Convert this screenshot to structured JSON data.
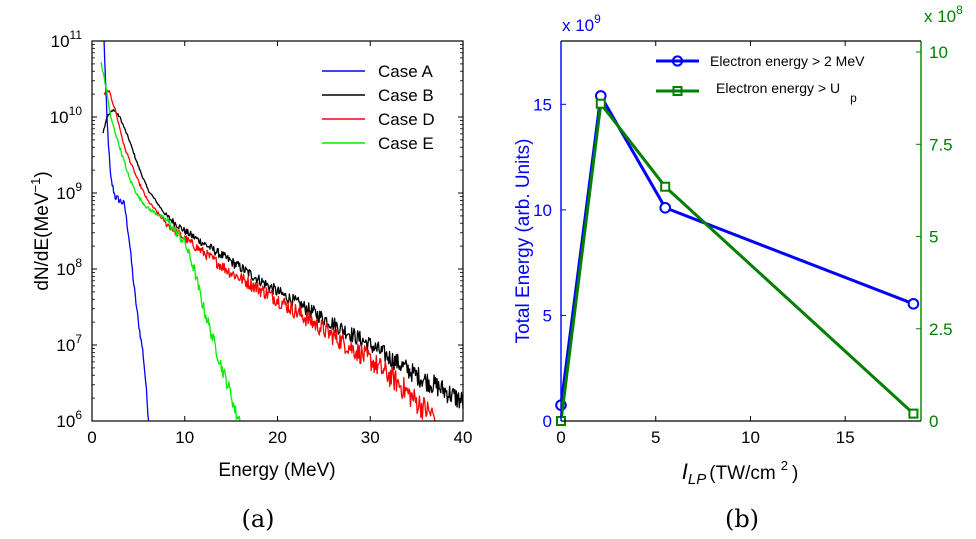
{
  "chart_data": [
    {
      "type": "line",
      "panel_label": "(a)",
      "xlabel": "Energy (MeV)",
      "ylabel_base": "dN/dE(MeV",
      "ylabel_exp": "−1",
      "ylabel_close": ")",
      "xlim": [
        0,
        40
      ],
      "ylim": [
        1000000.0,
        100000000000.0
      ],
      "yscale": "log",
      "xticks": [
        "0",
        "10",
        "20",
        "30",
        "40"
      ],
      "yticks": [
        {
          "base": "10",
          "exp": "6"
        },
        {
          "base": "10",
          "exp": "7"
        },
        {
          "base": "10",
          "exp": "8"
        },
        {
          "base": "10",
          "exp": "9"
        },
        {
          "base": "10",
          "exp": "10"
        },
        {
          "base": "10",
          "exp": "11"
        }
      ],
      "legend_position": "top-right",
      "series": [
        {
          "name": "Case A",
          "color": "#0000ff",
          "noise": 0.12,
          "log10": [
            [
              1.3,
              11.0
            ],
            [
              1.6,
              10.0
            ],
            [
              2.0,
              9.2
            ],
            [
              2.5,
              8.95
            ],
            [
              3.0,
              8.9
            ],
            [
              3.5,
              8.85
            ],
            [
              4.0,
              8.4
            ],
            [
              4.5,
              7.8
            ],
            [
              5.0,
              7.3
            ],
            [
              5.5,
              6.9
            ],
            [
              5.8,
              6.5
            ],
            [
              6.1,
              6.0
            ]
          ]
        },
        {
          "name": "Case B",
          "color": "#000000",
          "noise": 0.04,
          "log10": [
            [
              1.2,
              9.8
            ],
            [
              1.6,
              10.0
            ],
            [
              2.3,
              10.1
            ],
            [
              3.0,
              10.0
            ],
            [
              4.0,
              9.7
            ],
            [
              5.0,
              9.35
            ],
            [
              6.0,
              9.05
            ],
            [
              8.0,
              8.7
            ],
            [
              10.0,
              8.5
            ],
            [
              15.0,
              8.1
            ],
            [
              20.0,
              7.7
            ],
            [
              25.0,
              7.35
            ],
            [
              30.0,
              7.0
            ],
            [
              35.0,
              6.6
            ],
            [
              38.0,
              6.4
            ],
            [
              40.0,
              6.25
            ]
          ]
        },
        {
          "name": "Case D",
          "color": "#ff0000",
          "noise": 0.05,
          "log10": [
            [
              1.3,
              10.3
            ],
            [
              1.8,
              10.35
            ],
            [
              2.5,
              10.1
            ],
            [
              3.5,
              9.6
            ],
            [
              5.0,
              9.15
            ],
            [
              6.0,
              8.9
            ],
            [
              8.0,
              8.6
            ],
            [
              10.0,
              8.4
            ],
            [
              15.0,
              7.95
            ],
            [
              20.0,
              7.6
            ],
            [
              25.0,
              7.2
            ],
            [
              30.0,
              6.8
            ],
            [
              33.0,
              6.5
            ],
            [
              35.0,
              6.25
            ],
            [
              37.0,
              6.05
            ]
          ]
        },
        {
          "name": "Case E",
          "color": "#00ee00",
          "noise": 0.06,
          "log10": [
            [
              1.0,
              10.7
            ],
            [
              1.5,
              10.4
            ],
            [
              2.0,
              10.0
            ],
            [
              3.0,
              9.6
            ],
            [
              4.0,
              9.2
            ],
            [
              5.0,
              8.95
            ],
            [
              6.0,
              8.8
            ],
            [
              8.0,
              8.65
            ],
            [
              10.0,
              8.35
            ],
            [
              11.0,
              8.0
            ],
            [
              12.0,
              7.5
            ],
            [
              13.0,
              7.1
            ],
            [
              14.0,
              6.7
            ],
            [
              15.0,
              6.35
            ],
            [
              15.5,
              6.1
            ],
            [
              16.0,
              6.0
            ]
          ]
        }
      ]
    },
    {
      "type": "line",
      "panel_label": "(b)",
      "xlabel_main": "I",
      "xlabel_sub": "LP",
      "xlabel_unit": "(TW/cm",
      "xlabel_unit_exp": "2",
      "xlabel_close": ")",
      "ylabel_left": "Total Energy (arb. Units)",
      "xlim": [
        0,
        19
      ],
      "ylim_left": [
        0,
        18
      ],
      "ylim_right": [
        0,
        10.3
      ],
      "xticks": [
        "0",
        "5",
        "10",
        "15"
      ],
      "yticks_left": [
        "0",
        "5",
        "10",
        "15"
      ],
      "yticks_right": [
        "0",
        "2.5",
        "5",
        "7.5",
        "10"
      ],
      "multiplier_left": {
        "base": "x 10",
        "exp": "9",
        "color": "#0000ff"
      },
      "multiplier_right": {
        "base": "x 10",
        "exp": "8",
        "color": "#008000"
      },
      "legend_position": "top",
      "series": [
        {
          "name": "Electron energy > 2 MeV",
          "color": "#0000ff",
          "axis": "left",
          "marker": "circle",
          "x": [
            0,
            2.1,
            5.5,
            18.6
          ],
          "y": [
            0.75,
            15.4,
            10.1,
            5.55
          ]
        },
        {
          "name_base": "Electron energy > U",
          "name_sub": "p",
          "color": "#008000",
          "axis": "right",
          "marker": "square",
          "x": [
            0,
            2.1,
            5.5,
            18.6
          ],
          "y": [
            0,
            8.6,
            6.35,
            0.2
          ]
        }
      ]
    }
  ]
}
